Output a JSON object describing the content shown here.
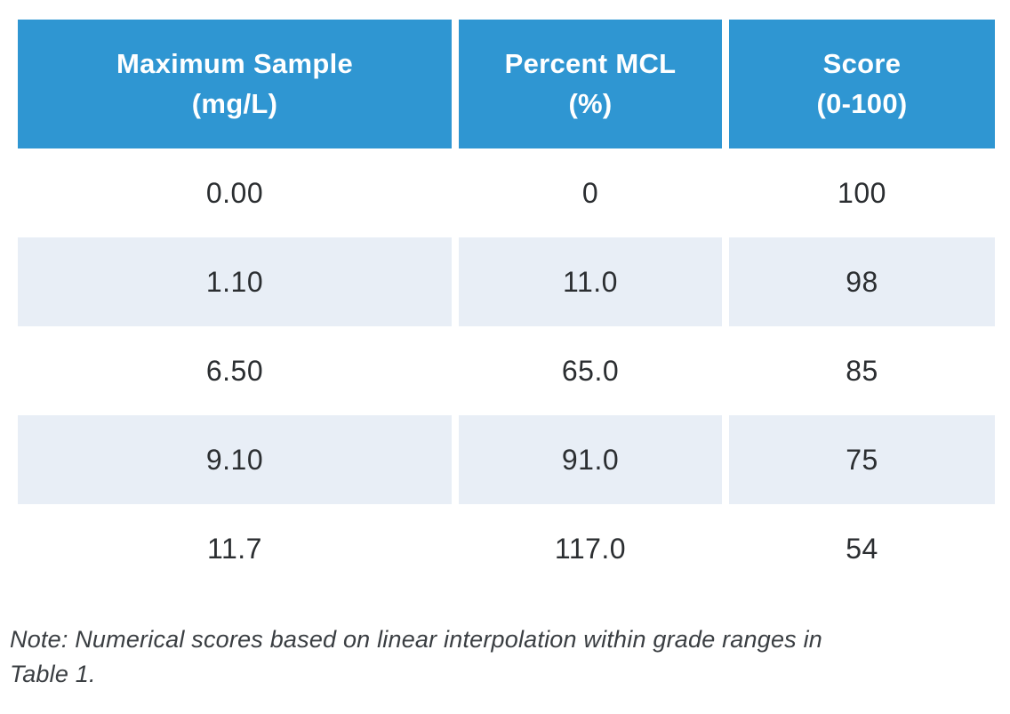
{
  "table": {
    "columns": [
      {
        "line1": "Maximum Sample",
        "line2": "(mg/L)"
      },
      {
        "line1": "Percent MCL",
        "line2": "(%)"
      },
      {
        "line1": "Score",
        "line2": "(0-100)"
      }
    ],
    "rows": [
      [
        "0.00",
        "0",
        "100"
      ],
      [
        "1.10",
        "11.0",
        "98"
      ],
      [
        "6.50",
        "65.0",
        "85"
      ],
      [
        "9.10",
        "91.0",
        "75"
      ],
      [
        "11.7",
        "117.0",
        "54"
      ]
    ]
  },
  "note": {
    "line1": "Note: Numerical scores based on linear interpolation within grade ranges in",
    "line2": "Table 1."
  },
  "colors": {
    "header_bg": "#2F96D2",
    "header_text": "#FFFFFF",
    "row_alt_bg": "#E8EEF6",
    "cell_text": "#2B2E31",
    "note_text": "#3A3E42"
  }
}
